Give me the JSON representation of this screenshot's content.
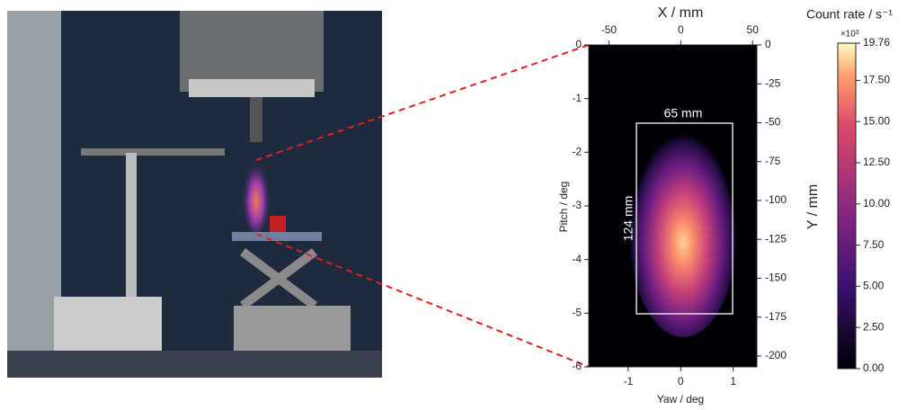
{
  "chart_data": {
    "type": "heatmap",
    "xlabel": "Yaw / deg",
    "ylabel": "Pitch / deg",
    "x2label": "X / mm",
    "y2label": "Y / mm",
    "xlim": [
      -1.75,
      1.45
    ],
    "xticks": [
      -1,
      0,
      1
    ],
    "x2lim": [
      -64,
      53
    ],
    "x2ticks": [
      -50,
      0,
      50
    ],
    "ylim": [
      -6,
      0
    ],
    "yticks": [
      0,
      -1,
      -2,
      -3,
      -4,
      -5,
      -6
    ],
    "y2lim": [
      -207,
      0
    ],
    "y2ticks": [
      0,
      -25,
      -50,
      -75,
      -100,
      -125,
      -150,
      -175,
      -200
    ],
    "colorbar": {
      "title": "Count rate / s⁻¹",
      "multiplier": "×10³",
      "lim": [
        0,
        19.76
      ],
      "ticks": [
        {
          "value": 0,
          "label": "0.00"
        },
        {
          "value": 2.5,
          "label": "2.50"
        },
        {
          "value": 5,
          "label": "5.00"
        },
        {
          "value": 7.5,
          "label": "7.50"
        },
        {
          "value": 10,
          "label": "10.00"
        },
        {
          "value": 12.5,
          "label": "12.50"
        },
        {
          "value": 15,
          "label": "15.00"
        },
        {
          "value": 17.5,
          "label": "17.50"
        },
        {
          "value": 19.76,
          "label": "19.76"
        }
      ]
    },
    "annotations": [
      "65 mm",
      "124 mm"
    ]
  }
}
